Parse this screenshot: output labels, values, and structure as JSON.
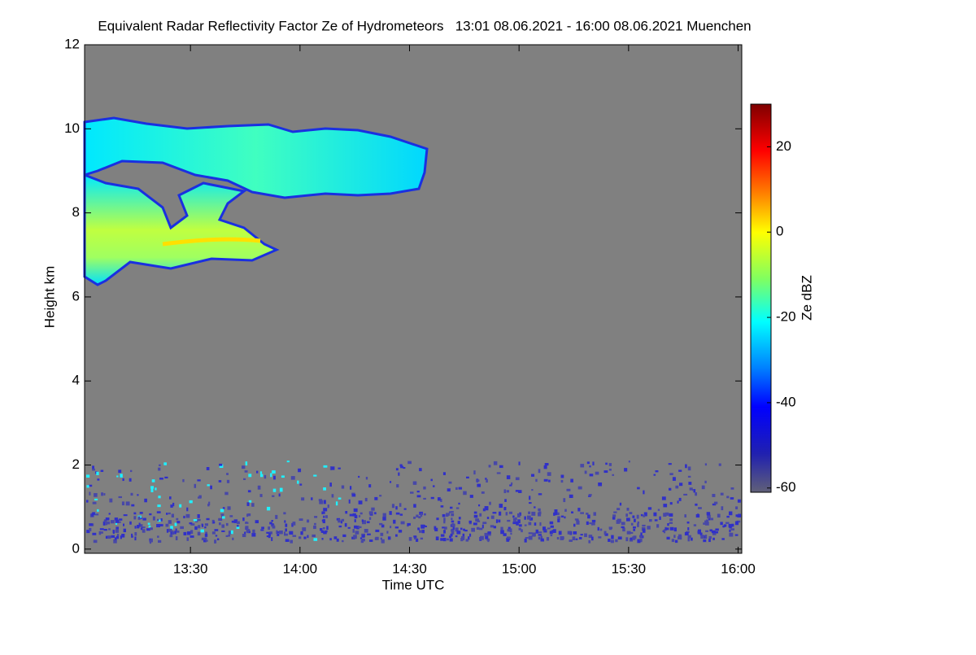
{
  "chart_data": {
    "type": "heatmap",
    "title": "Equivalent Radar Reflectivity Factor Ze of Hydrometeors   13:01 08.06.2021 - 16:00 08.06.2021 Muenchen",
    "x_label": "Time UTC",
    "y_label": "Height km",
    "xlim": [
      781,
      961
    ],
    "xticks": [
      {
        "value": 810,
        "label": "13:30"
      },
      {
        "value": 840,
        "label": "14:00"
      },
      {
        "value": 870,
        "label": "14:30"
      },
      {
        "value": 900,
        "label": "15:00"
      },
      {
        "value": 930,
        "label": "15:30"
      },
      {
        "value": 960,
        "label": "16:00"
      }
    ],
    "ylim": [
      -0.1,
      12
    ],
    "yticks": [
      0,
      2,
      4,
      6,
      8,
      10,
      12
    ],
    "colorbar_label": "Ze dBZ",
    "clim": [
      -61,
      30
    ],
    "cticks": [
      -60,
      -40,
      -20,
      0,
      20
    ],
    "background": "#808080"
  }
}
